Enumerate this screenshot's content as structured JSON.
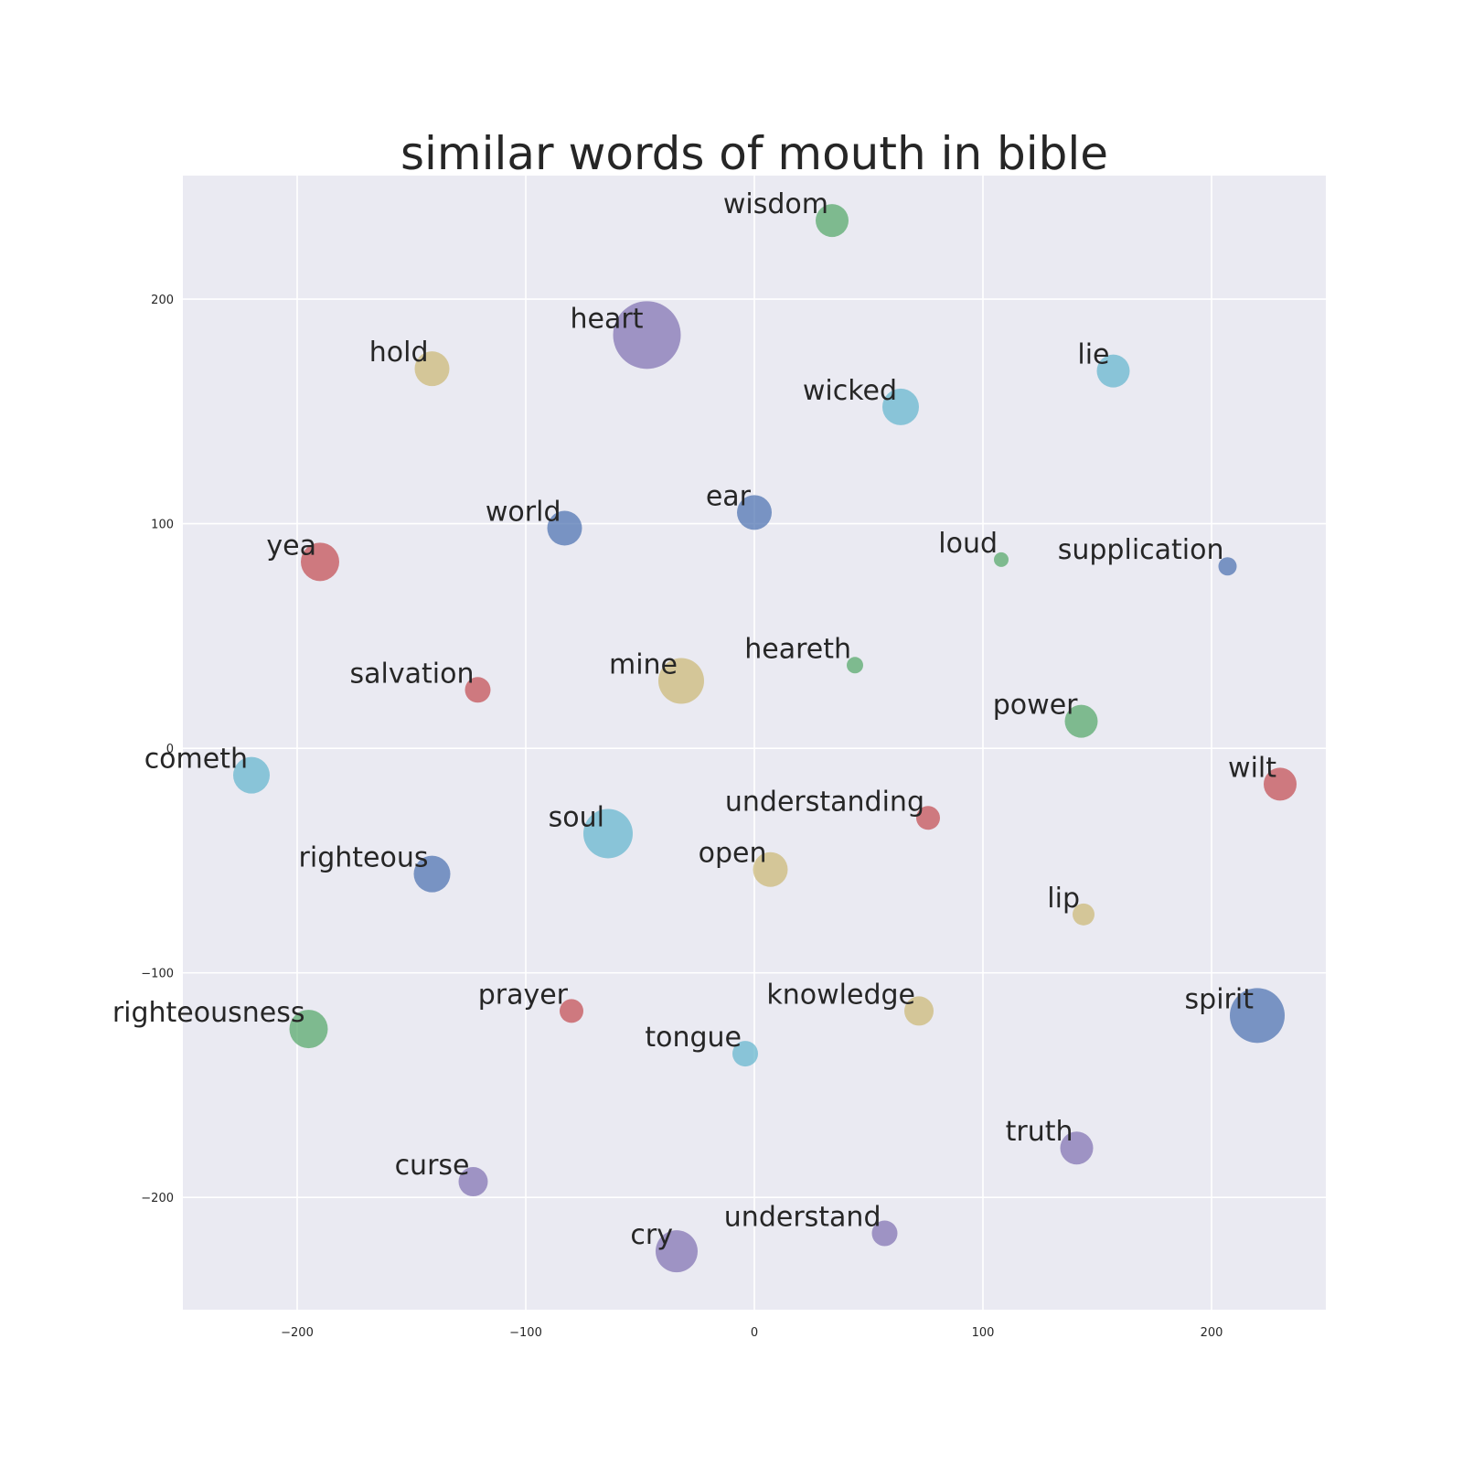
{
  "chart_data": {
    "type": "scatter",
    "title": "similar words of mouth in bible",
    "xlabel": "",
    "ylabel": "",
    "xlim": [
      -250,
      250
    ],
    "ylim": [
      -250,
      255
    ],
    "xticks": [
      -200,
      -100,
      0,
      100,
      200
    ],
    "yticks": [
      -200,
      -100,
      0,
      100,
      200
    ],
    "xtick_labels": [
      "−200",
      "−100",
      "0",
      "100",
      "200"
    ],
    "ytick_labels": [
      "−200",
      "−100",
      "0",
      "100",
      "200"
    ],
    "grid": true,
    "palette": {
      "blue": "#4c72b0",
      "green": "#55a868",
      "red": "#c44e52",
      "purple": "#8172b2",
      "yellow": "#ccb974",
      "cyan": "#64b5cd",
      "plot_background": "#eaeaf2",
      "grid": "#ffffff",
      "text": "#262626"
    },
    "points": [
      {
        "word": "wisdom",
        "x": 34,
        "y": 235,
        "size": 18,
        "color": "green"
      },
      {
        "word": "heart",
        "x": -47,
        "y": 184,
        "size": 37,
        "color": "purple"
      },
      {
        "word": "hold",
        "x": -141,
        "y": 169,
        "size": 19,
        "color": "yellow"
      },
      {
        "word": "lie",
        "x": 157,
        "y": 168,
        "size": 18,
        "color": "cyan"
      },
      {
        "word": "wicked",
        "x": 64,
        "y": 152,
        "size": 20,
        "color": "cyan"
      },
      {
        "word": "ear",
        "x": 0,
        "y": 105,
        "size": 19,
        "color": "blue"
      },
      {
        "word": "world",
        "x": -83,
        "y": 98,
        "size": 19,
        "color": "blue"
      },
      {
        "word": "yea",
        "x": -190,
        "y": 83,
        "size": 21,
        "color": "red"
      },
      {
        "word": "loud",
        "x": 108,
        "y": 84,
        "size": 8,
        "color": "green"
      },
      {
        "word": "supplication",
        "x": 207,
        "y": 81,
        "size": 10,
        "color": "blue"
      },
      {
        "word": "heareth",
        "x": 44,
        "y": 37,
        "size": 9,
        "color": "green"
      },
      {
        "word": "salvation",
        "x": -121,
        "y": 26,
        "size": 14,
        "color": "red"
      },
      {
        "word": "mine",
        "x": -32,
        "y": 30,
        "size": 25,
        "color": "yellow"
      },
      {
        "word": "power",
        "x": 143,
        "y": 12,
        "size": 18,
        "color": "green"
      },
      {
        "word": "cometh",
        "x": -220,
        "y": -12,
        "size": 20,
        "color": "cyan"
      },
      {
        "word": "wilt",
        "x": 230,
        "y": -16,
        "size": 18,
        "color": "red"
      },
      {
        "word": "understanding",
        "x": 76,
        "y": -31,
        "size": 13,
        "color": "red"
      },
      {
        "word": "soul",
        "x": -64,
        "y": -38,
        "size": 27,
        "color": "cyan"
      },
      {
        "word": "righteous",
        "x": -141,
        "y": -56,
        "size": 20,
        "color": "blue"
      },
      {
        "word": "open",
        "x": 7,
        "y": -54,
        "size": 19,
        "color": "yellow"
      },
      {
        "word": "lip",
        "x": 144,
        "y": -74,
        "size": 12,
        "color": "yellow"
      },
      {
        "word": "righteousness",
        "x": -195,
        "y": -125,
        "size": 21,
        "color": "green"
      },
      {
        "word": "prayer",
        "x": -80,
        "y": -117,
        "size": 13,
        "color": "red"
      },
      {
        "word": "knowledge",
        "x": 72,
        "y": -117,
        "size": 16,
        "color": "yellow"
      },
      {
        "word": "spirit",
        "x": 220,
        "y": -119,
        "size": 30,
        "color": "blue"
      },
      {
        "word": "tongue",
        "x": -4,
        "y": -136,
        "size": 14,
        "color": "cyan"
      },
      {
        "word": "truth",
        "x": 141,
        "y": -178,
        "size": 18,
        "color": "purple"
      },
      {
        "word": "curse",
        "x": -123,
        "y": -193,
        "size": 16,
        "color": "purple"
      },
      {
        "word": "understand",
        "x": 57,
        "y": -216,
        "size": 14,
        "color": "purple"
      },
      {
        "word": "cry",
        "x": -34,
        "y": -224,
        "size": 23,
        "color": "purple"
      }
    ]
  }
}
